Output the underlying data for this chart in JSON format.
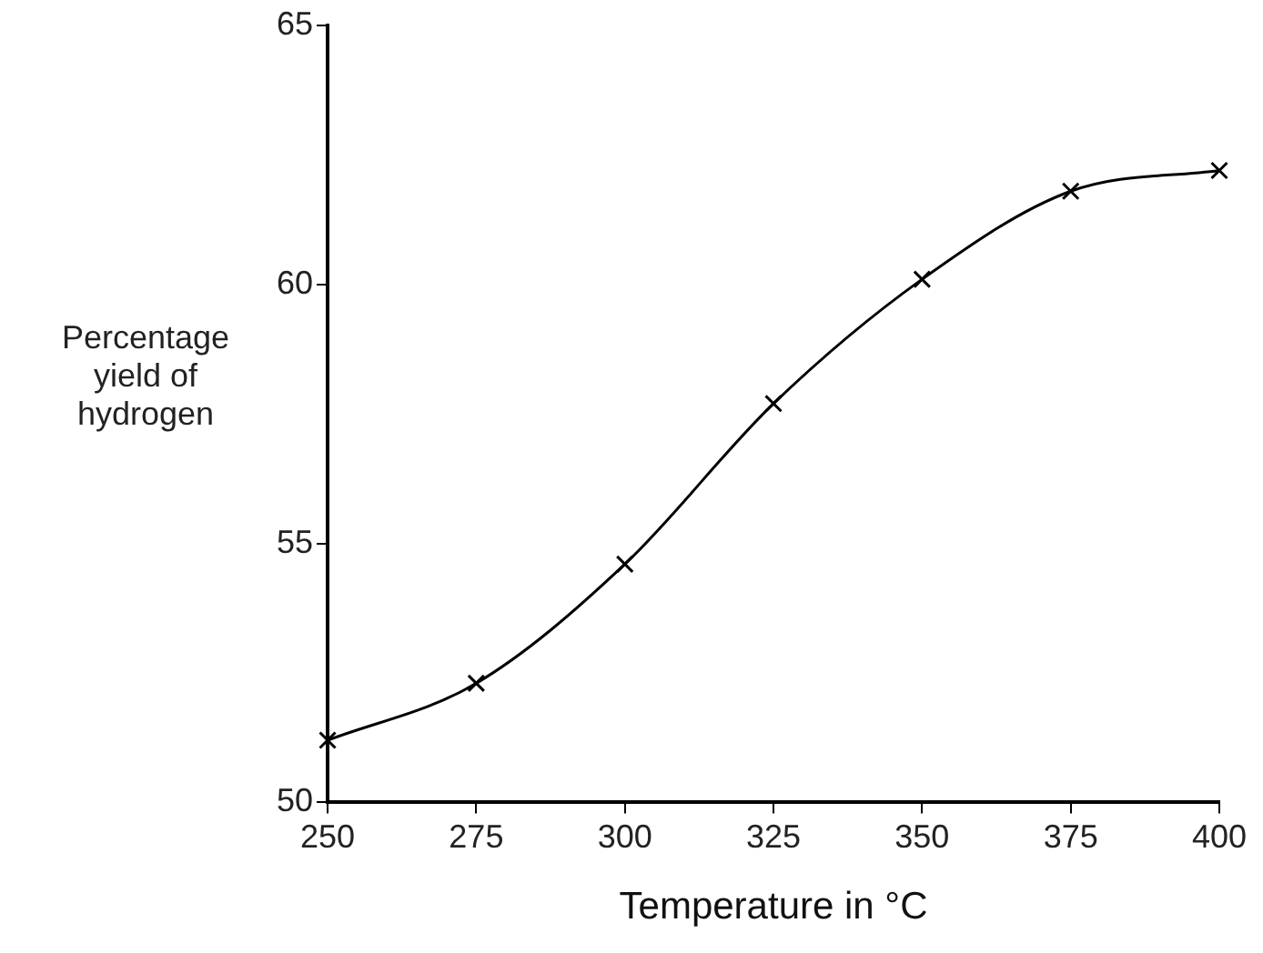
{
  "chart_data": {
    "type": "line",
    "xlabel": "Temperature in °C",
    "ylabel": "Percentage yield of hydrogen",
    "x": [
      250,
      275,
      300,
      325,
      350,
      375,
      400
    ],
    "series": [
      {
        "color": "#000000",
        "values": [
          51.2,
          52.3,
          54.6,
          57.7,
          60.1,
          61.8,
          62.2
        ]
      }
    ],
    "xlim": [
      250,
      400
    ],
    "xticks": [
      250,
      275,
      300,
      325,
      350,
      375,
      400
    ],
    "ylim": [
      50,
      65
    ],
    "yticks": [
      50,
      55,
      60,
      65
    ],
    "grid": false,
    "legend": false,
    "marker": "cross",
    "line_style": "solid"
  }
}
